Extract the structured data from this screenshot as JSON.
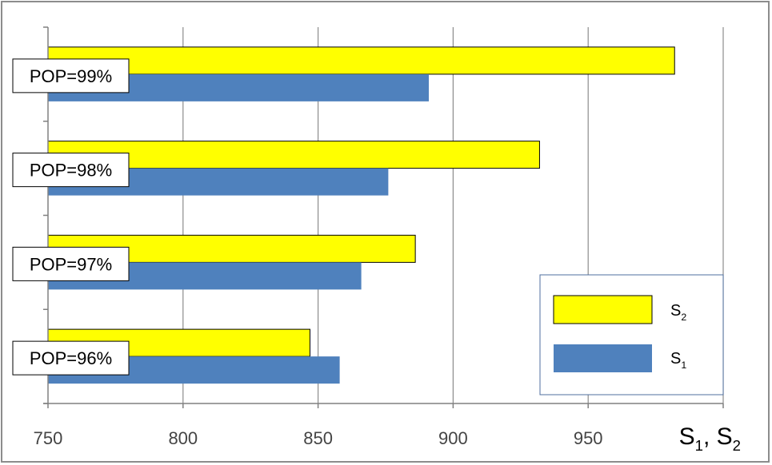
{
  "chart_data": {
    "type": "bar",
    "orientation": "horizontal",
    "categories": [
      "POP=99%",
      "POP=98%",
      "POP=97%",
      "POP=96%"
    ],
    "series": [
      {
        "name": "S2",
        "display_base": "S",
        "display_sub": "2",
        "color": "#ffff00",
        "values": [
          982,
          932,
          886,
          847
        ]
      },
      {
        "name": "S1",
        "display_base": "S",
        "display_sub": "1",
        "color": "#4f81bd",
        "values": [
          891,
          876,
          866,
          858
        ]
      }
    ],
    "xlim": [
      750,
      1000
    ],
    "xticks": [
      750,
      800,
      850,
      900,
      950
    ],
    "xlabel": {
      "part1": "S",
      "sub1": "1",
      "sep": ", ",
      "part2": "S",
      "sub2": "2"
    },
    "grid": true,
    "legend_position": "bottom-right"
  }
}
